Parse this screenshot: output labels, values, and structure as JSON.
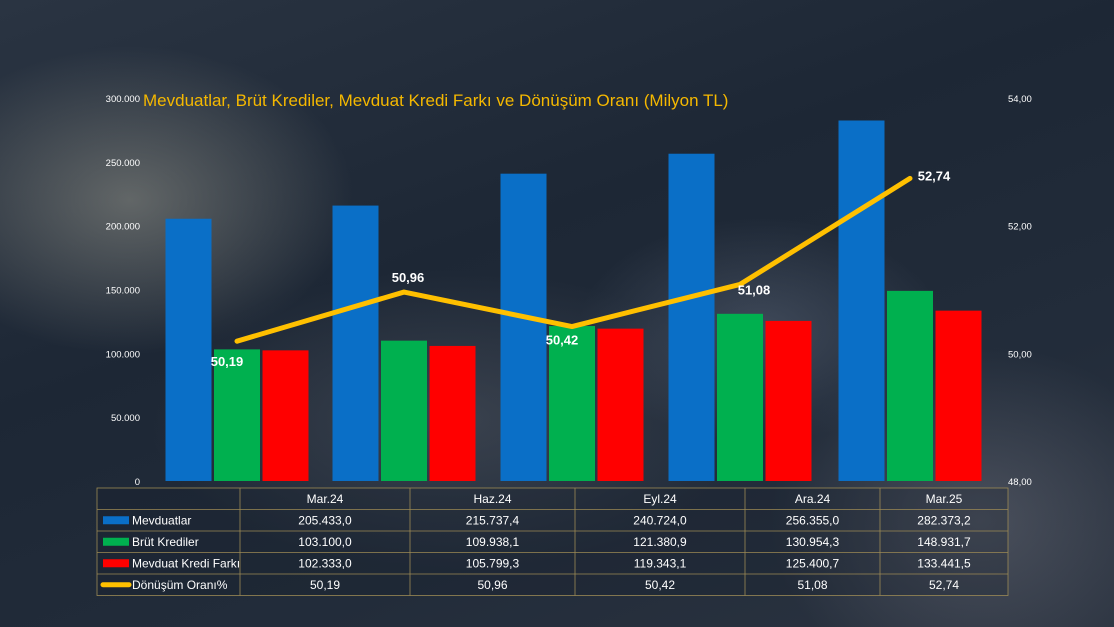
{
  "chart_data": {
    "type": "bar",
    "title": "Mevduatlar, Brüt Krediler, Mevduat Kredi Farkı ve Dönüşüm Oranı (Milyon TL)",
    "categories": [
      "Mar.24",
      "Haz.24",
      "Eyl.24",
      "Ara.24",
      "Mar.25"
    ],
    "series": [
      {
        "name": "Mevduatlar",
        "type": "bar",
        "color": "#0a6fc7",
        "values": [
          205433.0,
          215737.4,
          240724.0,
          256355.0,
          282373.2
        ],
        "display": [
          "205.433,0",
          "215.737,4",
          "240.724,0",
          "256.355,0",
          "282.373,2"
        ]
      },
      {
        "name": "Brüt Krediler",
        "type": "bar",
        "color": "#00b04f",
        "values": [
          103100.0,
          109938.1,
          121380.9,
          130954.3,
          148931.7
        ],
        "display": [
          "103.100,0",
          "109.938,1",
          "121.380,9",
          "130.954,3",
          "148.931,7"
        ]
      },
      {
        "name": "Mevduat Kredi Farkı",
        "type": "bar",
        "color": "#ff0000",
        "values": [
          102333.0,
          105799.3,
          119343.1,
          125400.7,
          133441.5
        ],
        "display": [
          "102.333,0",
          "105.799,3",
          "119.343,1",
          "125.400,7",
          "133.441,5"
        ]
      },
      {
        "name": "Dönüşüm Oranı%",
        "type": "line",
        "axis": "right",
        "color": "#ffc000",
        "values": [
          50.19,
          50.96,
          50.42,
          51.08,
          52.74
        ],
        "display": [
          "50,19",
          "50,96",
          "50,42",
          "51,08",
          "52,74"
        ]
      }
    ],
    "y_left": {
      "range": [
        0,
        300000
      ],
      "ticks": [
        "0",
        "50.000",
        "100.000",
        "150.000",
        "200.000",
        "250.000",
        "300.000"
      ]
    },
    "y_right": {
      "range": [
        48,
        54
      ],
      "ticks": [
        "48,00",
        "50,00",
        "52,00",
        "54,00"
      ]
    },
    "legend": "data-table"
  }
}
